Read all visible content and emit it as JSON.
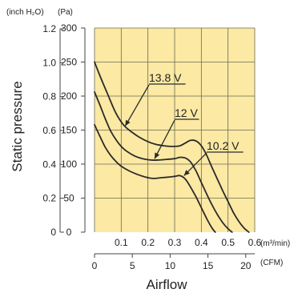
{
  "chart_data": {
    "type": "line",
    "plot_background": "#fbe9a4",
    "grid_color": "#6b6b52",
    "unit_labels": {
      "inch": "(inch H₂O)",
      "pa": "(Pa)",
      "m3min": "(m³/min)",
      "cfm": "(CFM)"
    },
    "ylabel": "Static pressure",
    "xlabel": "Airflow",
    "y_pa": {
      "ticks": [
        0,
        50,
        100,
        150,
        200,
        250,
        300
      ],
      "labels": [
        "0",
        "50",
        "100",
        "150",
        "200",
        "250",
        "300"
      ],
      "range": [
        0,
        300
      ]
    },
    "y_inch": {
      "ticks": [
        0,
        0.2,
        0.4,
        0.6,
        0.8,
        1.0,
        1.2
      ],
      "labels": [
        "0",
        "0.2",
        "0.4",
        "0.6",
        "0.8",
        "1.0",
        "1.2"
      ]
    },
    "x_m3min": {
      "ticks": [
        0.1,
        0.2,
        0.3,
        0.4,
        0.5,
        0.6
      ],
      "labels": [
        "0.1",
        "0.2",
        "0.3",
        "0.4",
        "0.5",
        "0.6"
      ],
      "range": [
        0,
        0.6
      ]
    },
    "x_cfm": {
      "ticks": [
        0,
        5,
        10,
        15,
        20
      ],
      "labels": [
        "0",
        "5",
        "10",
        "15",
        "20"
      ]
    },
    "series": [
      {
        "name": "13.8 V",
        "x": [
          0,
          0.02,
          0.05,
          0.08,
          0.11,
          0.14,
          0.17,
          0.2,
          0.23,
          0.26,
          0.29,
          0.32,
          0.34,
          0.36,
          0.38,
          0.4,
          0.42,
          0.44,
          0.46,
          0.48,
          0.5,
          0.52,
          0.54,
          0.56,
          0.578
        ],
        "y": [
          250,
          230,
          202,
          175,
          157,
          147,
          139,
          133,
          129,
          127,
          126,
          127,
          131,
          135,
          134,
          127,
          113,
          95,
          78,
          61,
          45,
          29,
          16,
          6,
          0
        ]
      },
      {
        "name": "12 V",
        "x": [
          0,
          0.02,
          0.04,
          0.06,
          0.08,
          0.1,
          0.12,
          0.15,
          0.18,
          0.21,
          0.24,
          0.27,
          0.3,
          0.32,
          0.34,
          0.36,
          0.38,
          0.4,
          0.42,
          0.44,
          0.46,
          0.48,
          0.5,
          0.515
        ],
        "y": [
          206,
          187,
          167,
          149,
          136,
          126,
          119,
          112,
          108,
          106,
          106,
          107,
          108,
          110,
          109,
          103,
          90,
          73,
          56,
          40,
          26,
          14,
          5,
          0
        ]
      },
      {
        "name": "10.2 V",
        "x": [
          0,
          0.02,
          0.04,
          0.06,
          0.08,
          0.1,
          0.13,
          0.16,
          0.19,
          0.22,
          0.25,
          0.28,
          0.3,
          0.32,
          0.34,
          0.36,
          0.38,
          0.4,
          0.42,
          0.44,
          0.452
        ],
        "y": [
          158,
          141,
          125,
          113,
          104,
          97,
          90,
          85,
          81,
          79,
          80,
          81,
          82,
          83,
          78,
          66,
          52,
          36,
          20,
          6,
          0
        ]
      }
    ]
  }
}
